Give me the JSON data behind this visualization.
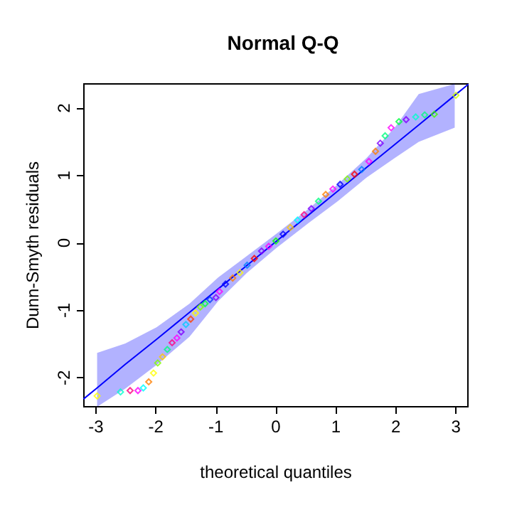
{
  "chart_data": {
    "type": "scatter",
    "title": "Normal Q-Q",
    "xlabel": "theoretical quantiles",
    "ylabel": "Dunn-Smyth residuals",
    "xlim": [
      -3.2,
      3.2
    ],
    "ylim": [
      -2.43,
      2.36
    ],
    "xticks": [
      -3,
      -2,
      -1,
      0,
      1,
      2,
      3
    ],
    "yticks": [
      -2,
      -1,
      0,
      1,
      2
    ],
    "grid": false,
    "series": [
      {
        "type": "line",
        "color": "#0000ff",
        "marker": "none",
        "x": [
          -3.2,
          -2.98,
          -2.51,
          -1.99,
          -1.44,
          -0.96,
          -0.48,
          0,
          0.55,
          1.03,
          1.51,
          1.98,
          2.38,
          2.98,
          3.2
        ],
        "values": [
          -2.31,
          -2.15,
          -1.8,
          -1.43,
          -1.03,
          -0.68,
          -0.33,
          0.02,
          0.42,
          0.77,
          1.12,
          1.46,
          1.75,
          2.19,
          2.35
        ],
        "lower": [
          null,
          -2.43,
          -2.16,
          -1.81,
          -1.39,
          -0.86,
          -0.44,
          -0.08,
          0.3,
          0.62,
          0.97,
          1.26,
          1.5,
          1.71,
          null
        ],
        "upper": [
          null,
          -1.63,
          -1.49,
          -1.25,
          -0.9,
          -0.51,
          -0.19,
          0.13,
          0.51,
          0.87,
          1.26,
          1.71,
          2.21,
          2.36,
          null
        ]
      },
      {
        "marker": "diamond",
        "x": [
          -2.98,
          -2.59,
          -2.43,
          -2.3,
          -2.21,
          -2.12,
          -2.04,
          -1.97,
          -1.89,
          -1.81,
          -1.73,
          -1.65,
          -1.58,
          -1.5,
          -1.42,
          -1.34,
          -1.26,
          -1.18,
          -1.1,
          -1.0,
          -0.94,
          -0.84,
          -0.72,
          -0.6,
          -0.48,
          -0.36,
          -0.24,
          -0.12,
          0.0,
          0.12,
          0.24,
          0.36,
          0.47,
          0.59,
          0.71,
          0.83,
          0.95,
          1.07,
          1.19,
          1.31,
          1.43,
          1.55,
          1.66,
          1.74,
          1.82,
          1.92,
          2.05,
          2.17,
          2.33,
          2.48,
          2.64,
          3.0
        ],
        "values": [
          -2.27,
          -2.21,
          -2.19,
          -2.19,
          -2.15,
          -2.06,
          -1.93,
          -1.78,
          -1.69,
          -1.58,
          -1.48,
          -1.41,
          -1.32,
          -1.21,
          -1.13,
          -1.04,
          -0.95,
          -0.9,
          -0.84,
          -0.81,
          -0.72,
          -0.61,
          -0.52,
          -0.44,
          -0.33,
          -0.23,
          -0.12,
          -0.05,
          0.03,
          0.13,
          0.23,
          0.34,
          0.42,
          0.51,
          0.62,
          0.72,
          0.8,
          0.87,
          0.95,
          1.02,
          1.09,
          1.21,
          1.36,
          1.48,
          1.59,
          1.71,
          1.8,
          1.83,
          1.87,
          1.9,
          1.91,
          2.19
        ],
        "colors": [
          "#ffff00",
          "#00ffcc",
          "#ff0080",
          "#ff00ff",
          "#00ffff",
          "#ff8000",
          "#ffff00",
          "#80ff00",
          "#ffcc00",
          "#00ff80",
          "#ff0080",
          "#ff00ff",
          "#8000ff",
          "#00ccff",
          "#ff4000",
          "#ffff00",
          "#80ff00",
          "#00ff40",
          "#0040ff",
          "#8000ff",
          "#ff00ff",
          "#0000ff",
          "#ff8000",
          "#ffff00",
          "#0080ff",
          "#ff0000",
          "#8000ff",
          "#ff00ff",
          "#00ff00",
          "#0000ff",
          "#ffcc00",
          "#00ffff",
          "#ff0080",
          "#8000ff",
          "#00ff80",
          "#ff8000",
          "#ff00ff",
          "#0000ff",
          "#80ff00",
          "#ff0000",
          "#0080ff",
          "#ff00ff",
          "#ff8000",
          "#8000ff",
          "#00ff80",
          "#ff00ff",
          "#00ff40",
          "#8000ff",
          "#00ffcc",
          "#00ff80",
          "#40ff00",
          "#ccff00"
        ]
      }
    ]
  }
}
